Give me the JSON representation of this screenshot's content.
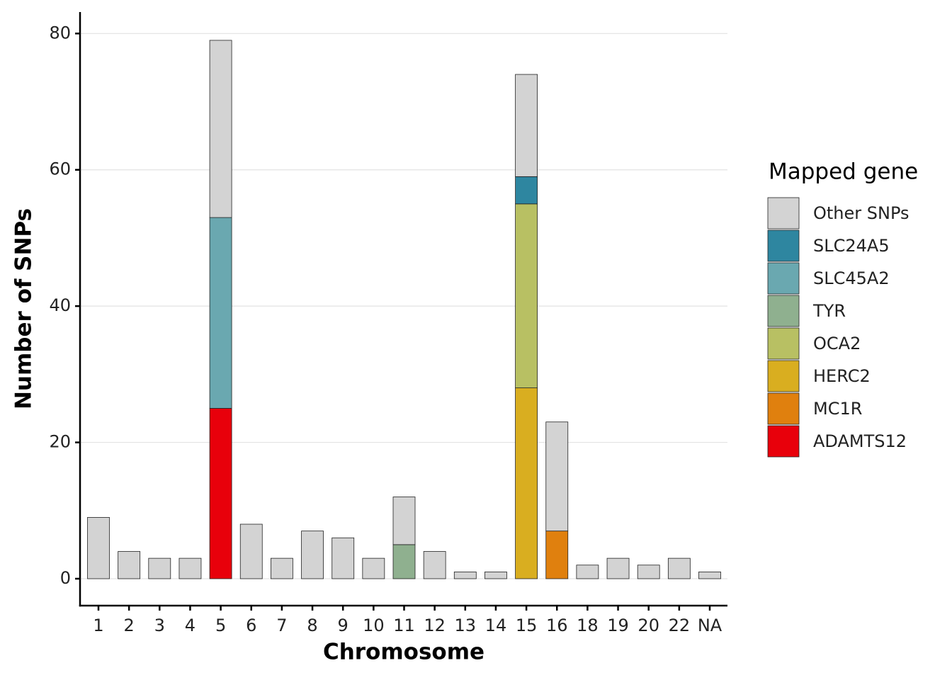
{
  "chart_data": {
    "type": "stacked-bar",
    "x_label": "Chromosome",
    "y_label": "Number of SNPs",
    "legend_title": "Mapped gene",
    "categories": [
      "1",
      "2",
      "3",
      "4",
      "5",
      "6",
      "7",
      "8",
      "9",
      "10",
      "11",
      "12",
      "13",
      "14",
      "15",
      "16",
      "18",
      "19",
      "20",
      "22",
      "NA"
    ],
    "series": [
      {
        "name": "Other SNPs",
        "color": "#d3d3d3",
        "values": [
          9,
          4,
          3,
          3,
          26,
          8,
          3,
          7,
          6,
          3,
          7,
          4,
          1,
          1,
          15,
          16,
          2,
          3,
          2,
          3,
          1
        ]
      },
      {
        "name": "SLC24A5",
        "color": "#2e86a0",
        "values": [
          0,
          0,
          0,
          0,
          0,
          0,
          0,
          0,
          0,
          0,
          0,
          0,
          0,
          0,
          4,
          0,
          0,
          0,
          0,
          0,
          0
        ]
      },
      {
        "name": "SLC45A2",
        "color": "#6aa8b0",
        "values": [
          0,
          0,
          0,
          0,
          28,
          0,
          0,
          0,
          0,
          0,
          0,
          0,
          0,
          0,
          0,
          0,
          0,
          0,
          0,
          0,
          0
        ]
      },
      {
        "name": "TYR",
        "color": "#8fb08f",
        "values": [
          0,
          0,
          0,
          0,
          0,
          0,
          0,
          0,
          0,
          0,
          5,
          0,
          0,
          0,
          0,
          0,
          0,
          0,
          0,
          0,
          0
        ]
      },
      {
        "name": "OCA2",
        "color": "#b8c063",
        "values": [
          0,
          0,
          0,
          0,
          0,
          0,
          0,
          0,
          0,
          0,
          0,
          0,
          0,
          0,
          27,
          0,
          0,
          0,
          0,
          0,
          0
        ]
      },
      {
        "name": "HERC2",
        "color": "#d9ae20",
        "values": [
          0,
          0,
          0,
          0,
          0,
          0,
          0,
          0,
          0,
          0,
          0,
          0,
          0,
          0,
          28,
          0,
          0,
          0,
          0,
          0,
          0
        ]
      },
      {
        "name": "MC1R",
        "color": "#e0800e",
        "values": [
          0,
          0,
          0,
          0,
          0,
          0,
          0,
          0,
          0,
          0,
          0,
          0,
          0,
          0,
          0,
          7,
          0,
          0,
          0,
          0,
          0
        ]
      },
      {
        "name": "ADAMTS12",
        "color": "#e8000b",
        "values": [
          0,
          0,
          0,
          0,
          25,
          0,
          0,
          0,
          0,
          0,
          0,
          0,
          0,
          0,
          0,
          0,
          0,
          0,
          0,
          0,
          0
        ]
      }
    ],
    "ylim": [
      -3.95,
      83.15
    ],
    "yticks": [
      0,
      20,
      40,
      60,
      80
    ],
    "grid": true
  }
}
